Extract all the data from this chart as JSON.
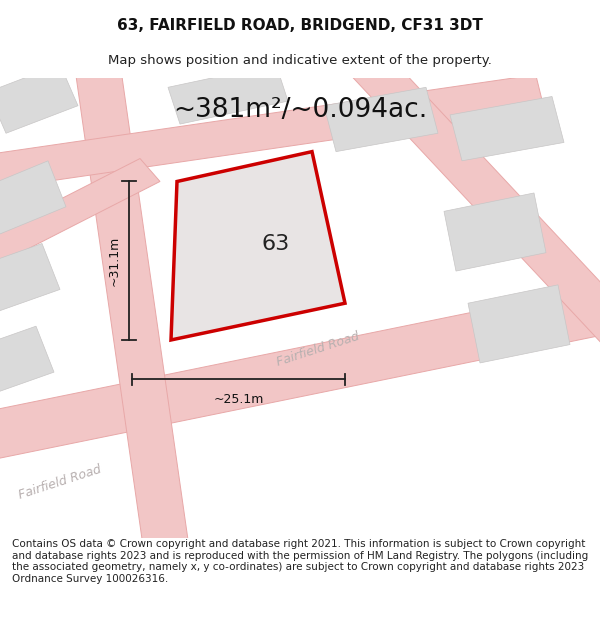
{
  "title": "63, FAIRFIELD ROAD, BRIDGEND, CF31 3DT",
  "subtitle": "Map shows position and indicative extent of the property.",
  "area_text": "~381m²/~0.094ac.",
  "label_63": "63",
  "dim_height": "~31.1m",
  "dim_width": "~25.1m",
  "road_label_main": "Fairfield Road",
  "road_label_bl": "Fairfield Road",
  "footer": "Contains OS data © Crown copyright and database right 2021. This information is subject to Crown copyright and database rights 2023 and is reproduced with the permission of HM Land Registry. The polygons (including the associated geometry, namely x, y co-ordinates) are subject to Crown copyright and database rights 2023 Ordnance Survey 100026316.",
  "bg_color": "#ffffff",
  "map_bg": "#f4f2f2",
  "road_color": "#f2c6c6",
  "road_edge": "#e8a8a8",
  "block_color": "#dadada",
  "block_edge": "#c8c6c6",
  "plot_fill": "#e8e4e4",
  "plot_edge": "#cc0000",
  "plot_edge_lw": 2.5,
  "building_fill": "#d2d0d0",
  "title_fontsize": 11,
  "subtitle_fontsize": 9.5,
  "area_fontsize": 19,
  "footer_fontsize": 7.5,
  "label_fontsize": 16,
  "dim_fontsize": 9,
  "road_label_fontsize": 9
}
